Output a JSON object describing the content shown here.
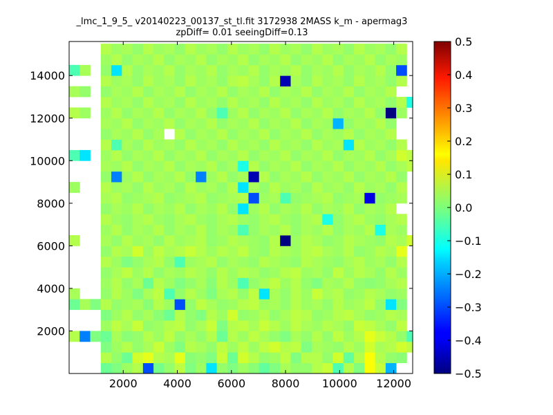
{
  "chart_data": {
    "type": "heatmap",
    "title_line1": "_lmc_1_9_5_ v20140223_00137_st_tl.fit 3172938 2MASS k_m - apermag3",
    "title_line2": "zpDiff= 0.01 seeingDiff=0.13",
    "xlabel": "",
    "ylabel": "",
    "xlim": [
      0,
      12700
    ],
    "ylim": [
      0,
      15600
    ],
    "x_ticks": [
      2000,
      4000,
      6000,
      8000,
      10000,
      12000
    ],
    "x_tick_labels": [
      "2000",
      "4000",
      "6000",
      "8000",
      "10000",
      "12000"
    ],
    "y_ticks": [
      2000,
      4000,
      6000,
      8000,
      10000,
      12000,
      14000
    ],
    "y_tick_labels": [
      "2000",
      "4000",
      "6000",
      "8000",
      "10000",
      "12000",
      "14000"
    ],
    "grid_x0": 0,
    "grid_y0": 0,
    "cell_w": 390,
    "cell_h": 500,
    "colormap": "jet",
    "colorbar": {
      "vmin": -0.5,
      "vmax": 0.5,
      "ticks": [
        0.5,
        0.4,
        0.3,
        0.2,
        0.1,
        0.0,
        -0.1,
        -0.2,
        -0.3,
        -0.4,
        -0.5
      ],
      "tick_labels": [
        "0.5",
        "0.4",
        "0.3",
        "0.2",
        "0.1",
        "0.0",
        "−0.1",
        "−0.2",
        "−0.3",
        "−0.4",
        "−0.5"
      ]
    },
    "grid_values": [
      [
        null,
        null,
        null,
        -0.02,
        0.0,
        0.03,
        0.05,
        -0.3,
        -0.01,
        0.02,
        0.06,
        0.0,
        0.03,
        -0.15,
        0.02,
        0.0,
        0.03,
        0.01,
        -0.03,
        0.0,
        0.04,
        0.02,
        0.02,
        0.05,
        0.07,
        -0.05,
        0.05,
        0.0,
        0.12,
        0.07,
        -0.2,
        null,
        null
      ],
      [
        null,
        null,
        null,
        0.05,
        0.02,
        -0.02,
        0.08,
        0.1,
        0.05,
        0.04,
        0.1,
        0.01,
        0.02,
        0.0,
        0.07,
        -0.02,
        0.08,
        0.05,
        0.02,
        0.03,
        0.06,
        0.0,
        0.05,
        0.05,
        0.02,
        0.08,
        -0.03,
        0.05,
        0.12,
        0.05,
        0.02,
        0.01,
        null
      ],
      [
        null,
        null,
        null,
        0.0,
        0.03,
        0.05,
        0.02,
        0.04,
        0.07,
        0.03,
        0.0,
        0.05,
        0.04,
        0.02,
        0.06,
        0.03,
        0.06,
        0.03,
        0.06,
        0.08,
        0.05,
        0.06,
        0.0,
        0.04,
        0.03,
        0.02,
        0.05,
        0.03,
        0.08,
        0.04,
        0.05,
        0.08,
        0.06
      ],
      [
        0.05,
        -0.25,
        0.0,
        -0.02,
        0.04,
        0.01,
        0.02,
        0.05,
        0.03,
        0.06,
        0.02,
        0.04,
        0.02,
        0.05,
        -0.02,
        0.05,
        0.03,
        0.06,
        0.04,
        0.02,
        0.0,
        0.04,
        0.02,
        0.05,
        0.02,
        0.06,
        0.03,
        0.05,
        0.1,
        0.07,
        0.05,
        0.02,
        -0.05
      ],
      [
        null,
        null,
        null,
        0.03,
        0.06,
        0.04,
        0.07,
        0.02,
        0.03,
        0.05,
        0.06,
        0.02,
        0.04,
        0.07,
        0.0,
        0.05,
        0.06,
        0.04,
        0.07,
        0.05,
        0.03,
        0.06,
        0.04,
        0.03,
        0.05,
        0.04,
        0.02,
        0.07,
        0.06,
        0.04,
        0.02,
        0.06,
        null
      ],
      [
        null,
        null,
        null,
        0.0,
        0.03,
        0.05,
        0.02,
        0.04,
        0.01,
        -0.02,
        0.05,
        0.02,
        0.0,
        0.05,
        0.03,
        0.08,
        0.02,
        0.03,
        0.05,
        0.02,
        0.04,
        0.06,
        0.05,
        0.02,
        0.03,
        0.05,
        0.06,
        0.04,
        0.02,
        0.03,
        0.05,
        0.04,
        null
      ],
      [
        -0.02,
        0.04,
        0.0,
        0.05,
        0.02,
        0.03,
        0.04,
        0.01,
        0.05,
        0.03,
        -0.3,
        0.02,
        0.06,
        0.04,
        0.02,
        0.03,
        0.05,
        0.06,
        0.03,
        0.04,
        0.02,
        0.05,
        0.03,
        0.04,
        0.02,
        0.05,
        0.03,
        0.04,
        0.06,
        0.02,
        -0.15,
        0.0,
        null
      ],
      [
        0.04,
        null,
        null,
        0.02,
        0.05,
        0.03,
        0.0,
        0.04,
        0.06,
        -0.05,
        0.02,
        0.05,
        0.03,
        0.0,
        0.04,
        0.05,
        0.02,
        0.06,
        -0.15,
        0.04,
        0.02,
        0.05,
        0.03,
        0.07,
        0.04,
        0.05,
        0.02,
        0.03,
        0.05,
        0.04,
        0.02,
        0.03,
        null
      ],
      [
        null,
        null,
        null,
        0.03,
        0.05,
        0.02,
        0.04,
        -0.02,
        0.05,
        0.03,
        0.0,
        0.02,
        0.04,
        0.01,
        0.05,
        0.03,
        -0.05,
        0.02,
        0.04,
        0.06,
        0.03,
        0.05,
        0.02,
        0.0,
        0.04,
        0.03,
        0.05,
        0.02,
        0.01,
        0.02,
        0.04,
        0.05,
        null
      ],
      [
        null,
        null,
        null,
        0.02,
        0.04,
        0.06,
        0.03,
        0.05,
        0.02,
        0.04,
        0.03,
        0.05,
        0.04,
        0.02,
        0.05,
        0.03,
        0.05,
        0.04,
        0.02,
        0.03,
        0.05,
        0.06,
        0.03,
        0.04,
        0.02,
        0.06,
        0.03,
        0.05,
        0.04,
        0.02,
        0.05,
        0.03,
        null
      ],
      [
        null,
        null,
        null,
        0.05,
        0.03,
        0.0,
        0.02,
        0.04,
        0.05,
        0.02,
        -0.05,
        0.03,
        0.04,
        0.05,
        0.02,
        0.04,
        0.03,
        0.02,
        0.05,
        0.04,
        0.03,
        0.02,
        0.05,
        0.04,
        0.03,
        0.02,
        0.04,
        0.05,
        0.03,
        0.04,
        0.02,
        0.05,
        null
      ],
      [
        null,
        null,
        null,
        0.02,
        0.05,
        0.04,
        0.08,
        0.03,
        0.06,
        0.04,
        0.05,
        0.07,
        0.05,
        0.03,
        0.05,
        0.04,
        0.06,
        0.03,
        0.02,
        0.05,
        0.04,
        0.03,
        0.05,
        0.06,
        0.04,
        0.03,
        0.05,
        0.02,
        0.03,
        0.05,
        0.04,
        0.1,
        null
      ],
      [
        0.05,
        null,
        null,
        0.04,
        0.02,
        0.05,
        0.03,
        0.04,
        0.02,
        0.05,
        0.03,
        0.04,
        0.05,
        0.02,
        0.03,
        0.05,
        0.04,
        0.03,
        0.02,
        0.05,
        -0.5,
        0.03,
        0.05,
        0.04,
        0.02,
        0.03,
        0.05,
        0.04,
        0.03,
        0.02,
        0.05,
        0.04,
        0.08
      ],
      [
        null,
        null,
        null,
        0.03,
        0.05,
        0.02,
        0.04,
        0.03,
        0.05,
        0.02,
        0.04,
        0.03,
        0.05,
        0.02,
        0.04,
        0.03,
        -0.05,
        0.02,
        0.04,
        0.03,
        0.05,
        0.02,
        0.04,
        0.03,
        0.05,
        0.02,
        0.04,
        0.03,
        0.05,
        -0.1,
        0.04,
        0.03,
        null
      ],
      [
        null,
        null,
        null,
        0.05,
        0.03,
        0.02,
        0.04,
        0.05,
        0.03,
        0.02,
        0.04,
        0.05,
        0.03,
        0.02,
        0.04,
        0.05,
        0.03,
        0.02,
        0.04,
        0.05,
        0.03,
        0.02,
        0.04,
        0.05,
        -0.1,
        0.02,
        0.04,
        0.05,
        0.03,
        0.02,
        0.04,
        0.05,
        null
      ],
      [
        null,
        null,
        null,
        0.02,
        0.04,
        0.03,
        0.05,
        0.02,
        0.04,
        0.03,
        0.05,
        0.02,
        0.04,
        0.03,
        0.05,
        0.02,
        -0.15,
        0.03,
        0.05,
        0.02,
        0.04,
        0.03,
        0.05,
        0.02,
        0.04,
        0.03,
        0.05,
        0.02,
        0.04,
        0.03,
        0.05,
        null,
        null
      ],
      [
        null,
        null,
        null,
        0.04,
        0.05,
        0.02,
        0.03,
        0.04,
        0.05,
        0.02,
        0.03,
        0.04,
        0.05,
        0.02,
        0.03,
        0.04,
        0.05,
        -0.3,
        0.03,
        0.04,
        -0.05,
        0.02,
        0.03,
        0.04,
        0.05,
        0.02,
        0.03,
        0.04,
        -0.4,
        0.02,
        0.03,
        0.04,
        null
      ],
      [
        0.03,
        null,
        null,
        0.05,
        0.03,
        0.04,
        0.02,
        0.05,
        0.03,
        0.04,
        0.02,
        0.05,
        0.03,
        0.04,
        0.02,
        0.05,
        -0.15,
        0.04,
        0.02,
        0.05,
        0.03,
        0.04,
        0.02,
        0.05,
        0.03,
        0.04,
        0.02,
        0.05,
        0.03,
        0.04,
        0.02,
        0.05,
        null
      ],
      [
        null,
        null,
        null,
        0.02,
        -0.25,
        0.03,
        0.05,
        0.02,
        0.04,
        0.03,
        0.05,
        0.02,
        -0.25,
        0.03,
        0.05,
        0.02,
        0.04,
        -0.45,
        0.05,
        0.02,
        0.04,
        0.03,
        0.05,
        0.02,
        0.04,
        0.03,
        0.05,
        0.02,
        0.04,
        0.03,
        0.05,
        0.02,
        null
      ],
      [
        null,
        null,
        null,
        0.04,
        0.03,
        0.05,
        0.02,
        0.04,
        0.03,
        0.05,
        0.02,
        0.04,
        0.03,
        0.05,
        0.02,
        0.04,
        -0.1,
        0.05,
        0.02,
        0.04,
        0.03,
        0.05,
        0.02,
        0.04,
        0.03,
        0.05,
        0.02,
        0.04,
        0.03,
        0.05,
        0.02,
        0.04,
        0.06
      ],
      [
        -0.05,
        -0.15,
        null,
        0.03,
        0.05,
        0.02,
        0.04,
        0.03,
        0.05,
        0.02,
        0.04,
        0.03,
        0.05,
        0.02,
        0.04,
        0.03,
        0.05,
        0.02,
        0.04,
        0.03,
        0.05,
        0.02,
        0.04,
        0.03,
        0.05,
        0.02,
        0.04,
        0.03,
        0.05,
        0.02,
        0.04,
        0.08,
        0.06
      ],
      [
        null,
        null,
        null,
        0.05,
        -0.05,
        0.04,
        0.02,
        0.05,
        0.03,
        0.04,
        0.02,
        0.05,
        0.03,
        0.04,
        0.02,
        0.05,
        0.03,
        0.04,
        0.02,
        0.05,
        0.03,
        0.04,
        0.02,
        0.05,
        0.03,
        0.04,
        -0.15,
        0.05,
        0.03,
        0.04,
        0.02,
        0.05,
        null
      ],
      [
        null,
        null,
        null,
        0.02,
        0.04,
        0.03,
        0.05,
        0.02,
        0.04,
        null,
        0.05,
        0.02,
        0.04,
        0.03,
        0.05,
        0.02,
        0.04,
        0.03,
        0.05,
        0.02,
        0.04,
        0.03,
        0.05,
        0.02,
        0.04,
        0.03,
        0.05,
        0.02,
        0.04,
        0.03,
        0.05,
        null,
        null
      ],
      [
        null,
        null,
        null,
        0.04,
        0.03,
        0.05,
        0.02,
        0.04,
        0.03,
        0.05,
        0.02,
        0.04,
        0.03,
        0.05,
        0.02,
        0.04,
        0.03,
        0.05,
        0.02,
        0.04,
        0.03,
        0.05,
        0.02,
        0.04,
        0.03,
        -0.2,
        0.02,
        0.04,
        0.03,
        0.05,
        0.02,
        null,
        null
      ],
      [
        0.05,
        0.03,
        null,
        0.03,
        0.05,
        0.02,
        0.04,
        0.03,
        0.05,
        0.02,
        0.04,
        0.03,
        0.05,
        0.02,
        -0.05,
        0.03,
        0.05,
        0.02,
        0.04,
        0.03,
        0.05,
        0.02,
        0.04,
        0.03,
        0.05,
        0.02,
        0.04,
        0.03,
        0.05,
        0.02,
        -0.5,
        0.03,
        null
      ],
      [
        null,
        null,
        null,
        0.05,
        0.03,
        0.04,
        0.02,
        0.05,
        0.03,
        0.04,
        0.02,
        0.05,
        0.03,
        0.04,
        0.02,
        0.05,
        0.03,
        0.04,
        0.02,
        0.05,
        0.03,
        0.04,
        0.02,
        0.05,
        0.03,
        0.04,
        0.02,
        0.05,
        0.03,
        0.04,
        0.02,
        0.05,
        -0.1
      ],
      [
        0.04,
        0.02,
        null,
        0.02,
        0.04,
        0.03,
        0.05,
        0.02,
        0.04,
        0.03,
        0.05,
        0.02,
        0.04,
        0.03,
        0.05,
        0.02,
        0.04,
        0.03,
        0.05,
        0.02,
        0.04,
        0.03,
        0.05,
        0.02,
        0.04,
        0.03,
        0.05,
        0.02,
        0.04,
        0.03,
        0.05,
        null,
        null
      ],
      [
        null,
        null,
        null,
        0.05,
        0.03,
        0.04,
        0.02,
        0.05,
        0.03,
        0.04,
        0.02,
        0.05,
        0.03,
        0.04,
        0.02,
        0.05,
        0.06,
        0.04,
        0.02,
        0.05,
        -0.45,
        0.04,
        0.02,
        0.05,
        0.03,
        0.04,
        0.02,
        0.05,
        0.03,
        0.04,
        0.02,
        0.05,
        null
      ],
      [
        -0.05,
        0.04,
        null,
        0.02,
        -0.15,
        0.05,
        0.02,
        0.04,
        0.03,
        0.05,
        0.02,
        0.04,
        0.03,
        0.05,
        0.02,
        0.04,
        0.03,
        0.05,
        0.02,
        0.04,
        0.03,
        0.05,
        0.02,
        0.04,
        0.03,
        0.05,
        0.02,
        0.04,
        0.03,
        0.05,
        0.02,
        -0.3,
        null
      ],
      [
        null,
        null,
        null,
        0.03,
        0.05,
        0.02,
        0.04,
        0.03,
        0.05,
        0.02,
        0.04,
        0.03,
        0.05,
        0.02,
        0.04,
        0.03,
        0.05,
        0.02,
        0.04,
        0.03,
        0.05,
        0.02,
        0.04,
        0.03,
        0.05,
        0.02,
        0.04,
        0.03,
        0.05,
        0.02,
        0.04,
        0.03,
        null
      ],
      [
        null,
        null,
        null,
        0.05,
        0.03,
        0.04,
        0.02,
        0.05,
        0.03,
        0.04,
        0.02,
        0.05,
        0.03,
        0.04,
        0.02,
        0.05,
        0.03,
        0.04,
        0.02,
        0.05,
        0.03,
        0.04,
        0.02,
        0.05,
        0.03,
        0.04,
        0.02,
        0.05,
        0.03,
        0.04,
        0.02,
        0.05,
        null
      ]
    ]
  }
}
